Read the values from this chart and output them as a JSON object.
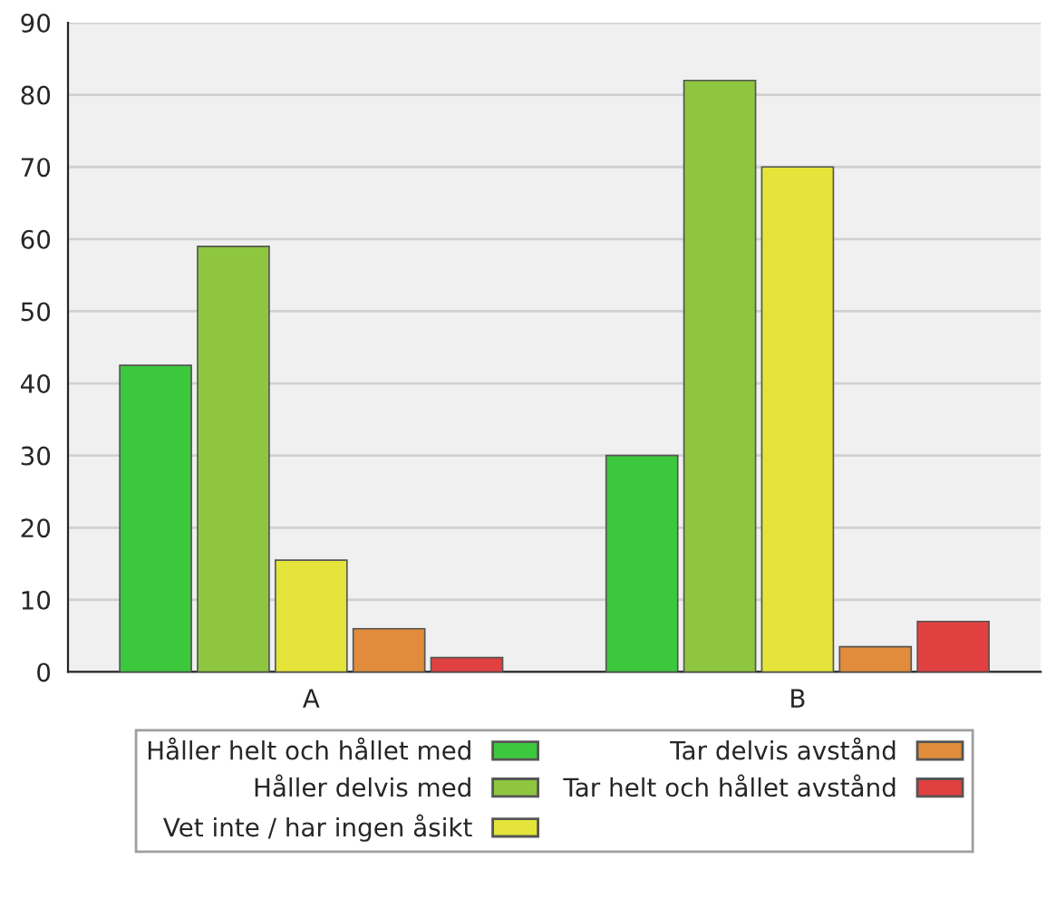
{
  "chart_data": {
    "type": "bar",
    "categories": [
      "A",
      "B"
    ],
    "series": [
      {
        "name": "Håller helt och hållet med",
        "color": "#3cc83c",
        "values": [
          42.5,
          30
        ]
      },
      {
        "name": "Håller delvis med",
        "color": "#8ec63f",
        "values": [
          59,
          82
        ]
      },
      {
        "name": "Vet inte / har ingen åsikt",
        "color": "#e4e43a",
        "values": [
          15.5,
          70
        ]
      },
      {
        "name": "Tar delvis avstånd",
        "color": "#e08c3c",
        "values": [
          6,
          3.5
        ]
      },
      {
        "name": "Tar helt och hållet avstånd",
        "color": "#e04040",
        "values": [
          2,
          7
        ]
      }
    ],
    "ylim": [
      0,
      90
    ],
    "yticks": [
      0,
      10,
      20,
      30,
      40,
      50,
      60,
      70,
      80,
      90
    ],
    "grid": "y",
    "legend": "bottom"
  }
}
